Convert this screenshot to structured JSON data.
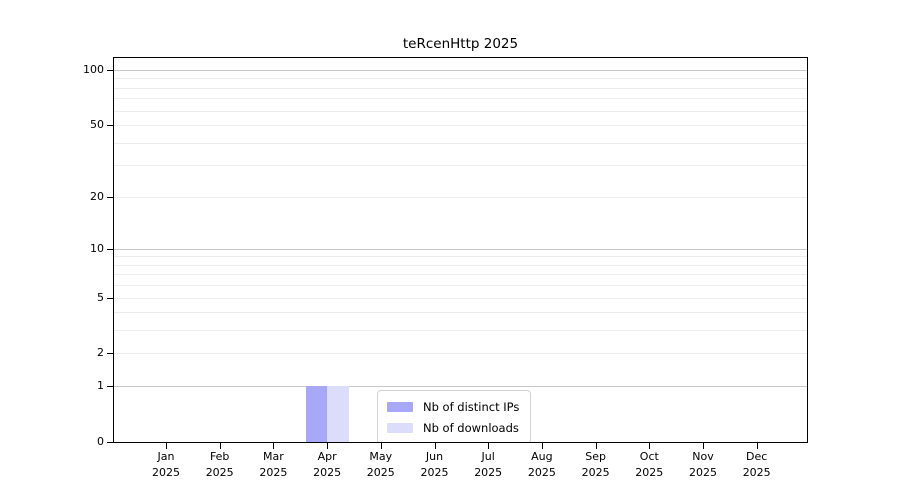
{
  "chart_data": {
    "type": "bar",
    "title": "teRcenHttp 2025",
    "categories": [
      "Jan",
      "Feb",
      "Mar",
      "Apr",
      "May",
      "Jun",
      "Jul",
      "Aug",
      "Sep",
      "Oct",
      "Nov",
      "Dec"
    ],
    "x_year_sublabel": "2025",
    "series": [
      {
        "name": "Nb of distinct IPs",
        "color": "#a8a8f8",
        "values": [
          0,
          0,
          0,
          1,
          0,
          0,
          0,
          0,
          0,
          0,
          0,
          0
        ]
      },
      {
        "name": "Nb of downloads",
        "color": "#dcdcfb",
        "values": [
          0,
          0,
          0,
          1,
          0,
          0,
          0,
          0,
          0,
          0,
          0,
          0
        ]
      }
    ],
    "y_axis": {
      "scale": "log10(value+1)",
      "tick_values": [
        0,
        1,
        2,
        5,
        10,
        20,
        50,
        100
      ],
      "major_gridlines": [
        1,
        10,
        100
      ],
      "minor_gridlines": [
        2,
        3,
        4,
        5,
        6,
        7,
        8,
        9,
        20,
        30,
        40,
        50,
        60,
        70,
        80,
        90
      ],
      "top_value": 100
    },
    "legend": {
      "position": "inside-bottom-center",
      "entries": [
        "Nb of distinct IPs",
        "Nb of downloads"
      ]
    },
    "grid": "horizontal-only",
    "background": "#ffffff"
  }
}
